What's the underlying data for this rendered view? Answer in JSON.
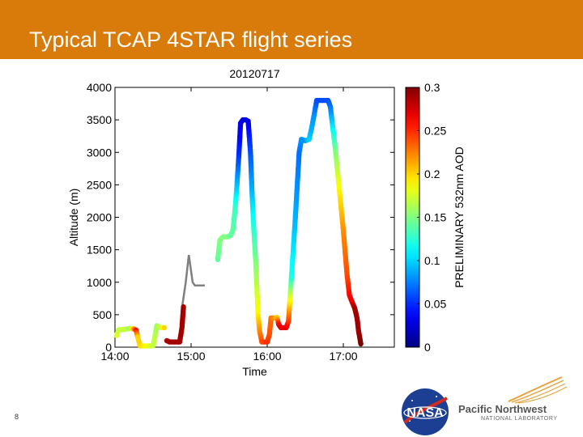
{
  "slide": {
    "title": "Typical TCAP 4STAR flight series",
    "page_number": "8"
  },
  "logos": {
    "nasa_text": "NASA",
    "pnnl_name": "Pacific Northwest",
    "pnnl_sub": "NATIONAL LABORATORY"
  },
  "colors": {
    "banner": "#d97b0a",
    "no_data_trace": "#808080"
  },
  "chart_data": {
    "type": "scatter",
    "title": "20120717",
    "xlabel": "Time",
    "ylabel": "Altitude (m)",
    "x_unit": "hour of day",
    "xlim": [
      14.0,
      17.67
    ],
    "ylim": [
      0,
      4000
    ],
    "x_ticks": [
      14.0,
      15.0,
      16.0,
      17.0
    ],
    "x_tick_labels": [
      "14:00",
      "15:00",
      "16:00",
      "17:00"
    ],
    "y_ticks": [
      0,
      500,
      1000,
      1500,
      2000,
      2500,
      3000,
      3500,
      4000
    ],
    "y_tick_labels": [
      "0",
      "500",
      "1000",
      "1500",
      "2000",
      "2500",
      "3000",
      "3500",
      "4000"
    ],
    "colorbar": {
      "label": "PRELIMINARY 532nm AOD",
      "colormap": "jet",
      "range": [
        0,
        0.3
      ],
      "ticks": [
        0,
        0.05,
        0.1,
        0.15,
        0.2,
        0.25,
        0.3
      ],
      "tick_labels": [
        "0",
        "0.05",
        "0.1",
        "0.15",
        "0.2",
        "0.25",
        "0.3"
      ]
    },
    "series": [
      {
        "marker": "filled-circle",
        "segments": [
          [
            [
              14.02,
              180,
              0.18
            ],
            [
              14.05,
              270,
              0.17
            ],
            [
              14.1,
              270,
              0.17
            ],
            [
              14.15,
              280,
              0.17
            ],
            [
              14.2,
              290,
              0.16
            ],
            [
              14.25,
              280,
              0.22
            ],
            [
              14.28,
              260,
              0.26
            ],
            [
              14.3,
              150,
              0.2
            ],
            [
              14.33,
              20,
              0.2
            ],
            [
              14.45,
              20,
              0.18
            ],
            [
              14.5,
              20,
              0.17
            ],
            [
              14.52,
              130,
              0.17
            ],
            [
              14.55,
              330,
              0.16
            ],
            [
              14.6,
              300,
              0.17
            ],
            [
              14.65,
              300,
              0.2
            ]
          ],
          [
            [
              14.68,
              100,
              0.28
            ],
            [
              14.72,
              80,
              0.29
            ],
            [
              14.8,
              80,
              0.29
            ],
            [
              14.85,
              80,
              0.29
            ],
            [
              14.88,
              300,
              0.29
            ],
            [
              14.9,
              620,
              0.29
            ]
          ],
          [
            [
              15.35,
              1350,
              0.14
            ],
            [
              15.38,
              1650,
              0.15
            ],
            [
              15.42,
              1700,
              0.15
            ],
            [
              15.48,
              1700,
              0.15
            ],
            [
              15.52,
              1720,
              0.14
            ],
            [
              15.55,
              1800,
              0.14
            ],
            [
              15.58,
              2150,
              0.13
            ],
            [
              15.6,
              2450,
              0.1
            ],
            [
              15.63,
              3000,
              0.05
            ],
            [
              15.65,
              3450,
              0.03
            ],
            [
              15.68,
              3500,
              0.03
            ],
            [
              15.72,
              3500,
              0.03
            ],
            [
              15.75,
              3480,
              0.03
            ],
            [
              15.78,
              3000,
              0.06
            ],
            [
              15.8,
              2400,
              0.09
            ],
            [
              15.82,
              1900,
              0.12
            ],
            [
              15.85,
              1300,
              0.15
            ],
            [
              15.88,
              500,
              0.19
            ],
            [
              15.9,
              250,
              0.22
            ],
            [
              15.93,
              80,
              0.24
            ],
            [
              16.0,
              80,
              0.25
            ],
            [
              16.03,
              200,
              0.24
            ],
            [
              16.05,
              450,
              0.23
            ],
            [
              16.1,
              450,
              0.22
            ],
            [
              16.13,
              460,
              0.2
            ],
            [
              16.15,
              350,
              0.26
            ],
            [
              16.18,
              300,
              0.27
            ],
            [
              16.25,
              300,
              0.27
            ],
            [
              16.28,
              400,
              0.25
            ],
            [
              16.32,
              1100,
              0.12
            ],
            [
              16.37,
              2000,
              0.09
            ],
            [
              16.42,
              3000,
              0.07
            ],
            [
              16.45,
              3200,
              0.08
            ],
            [
              16.5,
              3180,
              0.08
            ],
            [
              16.55,
              3200,
              0.1
            ],
            [
              16.58,
              3350,
              0.09
            ],
            [
              16.62,
              3600,
              0.08
            ],
            [
              16.65,
              3800,
              0.06
            ],
            [
              16.72,
              3800,
              0.06
            ],
            [
              16.8,
              3800,
              0.06
            ],
            [
              16.83,
              3700,
              0.07
            ],
            [
              16.9,
              3000,
              0.15
            ],
            [
              16.95,
              2400,
              0.19
            ],
            [
              17.0,
              1800,
              0.22
            ],
            [
              17.05,
              1100,
              0.24
            ],
            [
              17.08,
              800,
              0.26
            ],
            [
              17.12,
              680,
              0.27
            ],
            [
              17.15,
              600,
              0.29
            ],
            [
              17.18,
              450,
              0.29
            ],
            [
              17.2,
              250,
              0.29
            ],
            [
              17.23,
              50,
              0.3
            ]
          ]
        ]
      }
    ],
    "no_aod_trace": [
      [
        14.87,
        300
      ],
      [
        14.88,
        600
      ],
      [
        14.93,
        1000
      ],
      [
        14.97,
        1420
      ],
      [
        15.02,
        1000
      ],
      [
        15.05,
        950
      ],
      [
        15.15,
        950
      ],
      [
        15.18,
        950
      ]
    ]
  }
}
